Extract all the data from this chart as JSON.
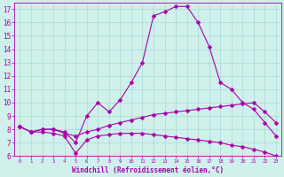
{
  "xlabel": "Windchill (Refroidissement éolien,°C)",
  "xlim": [
    -0.5,
    23.5
  ],
  "ylim": [
    6,
    17.5
  ],
  "yticks": [
    6,
    7,
    8,
    9,
    10,
    11,
    12,
    13,
    14,
    15,
    16,
    17
  ],
  "xticks": [
    0,
    1,
    2,
    3,
    4,
    5,
    6,
    7,
    8,
    9,
    10,
    11,
    12,
    13,
    14,
    15,
    16,
    17,
    18,
    19,
    20,
    21,
    22,
    23
  ],
  "bg_color": "#cff0eb",
  "grid_color": "#aad8d3",
  "line_color": "#aa00aa",
  "curve_top_x": [
    0,
    1,
    2,
    3,
    4,
    5,
    6,
    7,
    8,
    9,
    10,
    11,
    12,
    13,
    14,
    15,
    16,
    17,
    18,
    19,
    20,
    21,
    22,
    23
  ],
  "curve_top_y": [
    8.2,
    7.8,
    8.0,
    8.0,
    7.8,
    7.0,
    9.0,
    10.0,
    9.3,
    10.2,
    11.5,
    13.0,
    16.5,
    16.8,
    17.2,
    17.2,
    16.0,
    14.2,
    11.5,
    11.0,
    10.0,
    9.5,
    8.5,
    7.5
  ],
  "curve_mid_x": [
    0,
    1,
    2,
    3,
    4,
    5,
    6,
    7,
    8,
    9,
    10,
    11,
    12,
    13,
    14,
    15,
    16,
    17,
    18,
    19,
    20,
    21,
    22,
    23
  ],
  "curve_mid_y": [
    8.2,
    7.8,
    8.0,
    8.0,
    7.7,
    7.5,
    7.8,
    8.0,
    8.3,
    8.5,
    8.7,
    8.9,
    9.1,
    9.2,
    9.3,
    9.4,
    9.5,
    9.6,
    9.7,
    9.8,
    9.9,
    10.0,
    9.3,
    8.5
  ],
  "curve_bot_x": [
    0,
    1,
    2,
    3,
    4,
    5,
    6,
    7,
    8,
    9,
    10,
    11,
    12,
    13,
    14,
    15,
    16,
    17,
    18,
    19,
    20,
    21,
    22,
    23
  ],
  "curve_bot_y": [
    8.2,
    7.8,
    7.8,
    7.7,
    7.5,
    6.2,
    7.2,
    7.5,
    7.6,
    7.7,
    7.7,
    7.7,
    7.6,
    7.5,
    7.4,
    7.3,
    7.2,
    7.1,
    7.0,
    6.8,
    6.7,
    6.5,
    6.3,
    6.0
  ],
  "marker": "D",
  "markersize": 2.5,
  "linewidth": 0.8,
  "tick_fontsize": 5,
  "xlabel_fontsize": 5.5
}
